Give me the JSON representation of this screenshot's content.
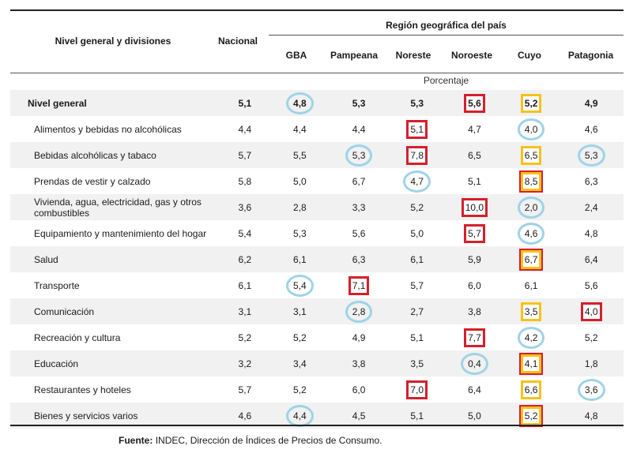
{
  "header": {
    "divisions": "Nivel general y divisiones",
    "nacional": "Nacional",
    "region": "Región geográfica del país",
    "regions": [
      "GBA",
      "Pampeana",
      "Noreste",
      "Noroeste",
      "Cuyo",
      "Patagonia"
    ],
    "unit": "Porcentaje"
  },
  "colors": {
    "red": "#d61f2c",
    "yellow": "#f6c21a",
    "blue": "#9fd3e8"
  },
  "rows": [
    {
      "label": "Nivel general",
      "values": [
        "5,1",
        "4,8",
        "5,3",
        "5,3",
        "5,6",
        "5,2",
        "4,9"
      ],
      "marks": [
        "",
        "blue",
        "",
        "",
        "red",
        "yellow",
        ""
      ]
    },
    {
      "label": "Alimentos y bebidas no alcohólicas",
      "values": [
        "4,4",
        "4,4",
        "4,4",
        "5,1",
        "4,7",
        "4,0",
        "4,6"
      ],
      "marks": [
        "",
        "",
        "",
        "red",
        "",
        "blue",
        ""
      ]
    },
    {
      "label": "Bebidas alcohólicas y tabaco",
      "values": [
        "5,7",
        "5,5",
        "5,3",
        "7,8",
        "6,5",
        "6,5",
        "5,3"
      ],
      "marks": [
        "",
        "",
        "blue",
        "red",
        "",
        "yellow",
        "blue"
      ]
    },
    {
      "label": "Prendas de vestir y calzado",
      "values": [
        "5,8",
        "5,0",
        "6,7",
        "4,7",
        "5,1",
        "8,5",
        "6,3"
      ],
      "marks": [
        "",
        "",
        "",
        "blue",
        "",
        "both",
        ""
      ]
    },
    {
      "label": "Vivienda, agua, electricidad, gas y otros combustibles",
      "values": [
        "3,6",
        "2,8",
        "3,3",
        "5,2",
        "10,0",
        "2,0",
        "2,4"
      ],
      "marks": [
        "",
        "",
        "",
        "",
        "red",
        "blue",
        ""
      ]
    },
    {
      "label": "Equipamiento y mantenimiento del hogar",
      "values": [
        "5,4",
        "5,3",
        "5,6",
        "5,0",
        "5,7",
        "4,6",
        "4,8"
      ],
      "marks": [
        "",
        "",
        "",
        "",
        "red",
        "blue",
        ""
      ]
    },
    {
      "label": "Salud",
      "values": [
        "6,2",
        "6,1",
        "6,3",
        "6,1",
        "5,9",
        "6,7",
        "6,4"
      ],
      "marks": [
        "",
        "",
        "",
        "",
        "",
        "both",
        ""
      ]
    },
    {
      "label": "Transporte",
      "values": [
        "6,1",
        "5,4",
        "7,1",
        "5,7",
        "6,0",
        "6,1",
        "5,6"
      ],
      "marks": [
        "",
        "blue",
        "red",
        "",
        "",
        "",
        ""
      ]
    },
    {
      "label": "Comunicación",
      "values": [
        "3,1",
        "3,1",
        "2,8",
        "2,7",
        "3,8",
        "3,5",
        "4,0"
      ],
      "marks": [
        "",
        "",
        "blue",
        "",
        "",
        "yellow",
        "red"
      ]
    },
    {
      "label": "Recreación y cultura",
      "values": [
        "5,2",
        "5,2",
        "4,9",
        "5,1",
        "7,7",
        "4,2",
        "5,2"
      ],
      "marks": [
        "",
        "",
        "",
        "",
        "red",
        "blue",
        ""
      ]
    },
    {
      "label": "Educación",
      "values": [
        "3,2",
        "3,4",
        "3,8",
        "3,5",
        "0,4",
        "4,1",
        "1,8"
      ],
      "marks": [
        "",
        "",
        "",
        "",
        "blue",
        "both",
        ""
      ]
    },
    {
      "label": "Restaurantes y hoteles",
      "values": [
        "5,7",
        "5,2",
        "6,0",
        "7,0",
        "6,4",
        "6,6",
        "3,6"
      ],
      "marks": [
        "",
        "",
        "",
        "red",
        "",
        "yellow",
        "blue"
      ]
    },
    {
      "label": "Bienes y servicios varios",
      "values": [
        "4,6",
        "4,4",
        "4,5",
        "5,1",
        "5,0",
        "5,2",
        "4,8"
      ],
      "marks": [
        "",
        "blue",
        "",
        "",
        "",
        "both",
        ""
      ]
    }
  ],
  "source": {
    "label": "Fuente:",
    "text": "INDEC, Dirección de Índices de Precios de Consumo."
  }
}
